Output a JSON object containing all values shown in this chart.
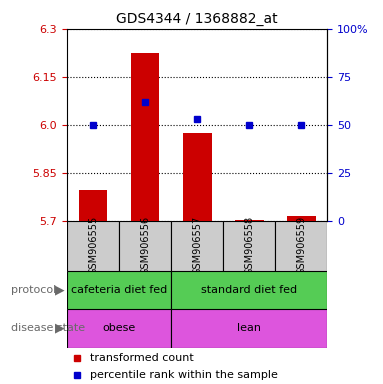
{
  "title": "GDS4344 / 1368882_at",
  "samples": [
    "GSM906555",
    "GSM906556",
    "GSM906557",
    "GSM906558",
    "GSM906559"
  ],
  "bar_values": [
    5.795,
    6.225,
    5.975,
    5.703,
    5.715
  ],
  "bar_bottom": 5.7,
  "percentile_raw": [
    50,
    62,
    53,
    50,
    50
  ],
  "ylim_left": [
    5.7,
    6.3
  ],
  "yticks_left": [
    5.7,
    5.85,
    6.0,
    6.15,
    6.3
  ],
  "yticks_right": [
    0,
    25,
    50,
    75,
    100
  ],
  "ylim_right": [
    0,
    100
  ],
  "bar_color": "#cc0000",
  "dot_color": "#0000cc",
  "protocol_color": "#55cc55",
  "disease_color": "#dd55dd",
  "sample_box_color": "#cccccc",
  "left_tick_color": "#cc0000",
  "right_tick_color": "#0000cc",
  "legend_red_label": "transformed count",
  "legend_blue_label": "percentile rank within the sample",
  "protocol_row_label": "protocol",
  "disease_row_label": "disease state",
  "proto_groups": [
    [
      "cafeteria diet fed",
      0,
      2
    ],
    [
      "standard diet fed",
      2,
      5
    ]
  ],
  "disease_groups": [
    [
      "obese",
      0,
      2
    ],
    [
      "lean",
      2,
      5
    ]
  ],
  "title_fontsize": 10,
  "tick_fontsize": 8,
  "anno_fontsize": 8,
  "sample_fontsize": 7
}
